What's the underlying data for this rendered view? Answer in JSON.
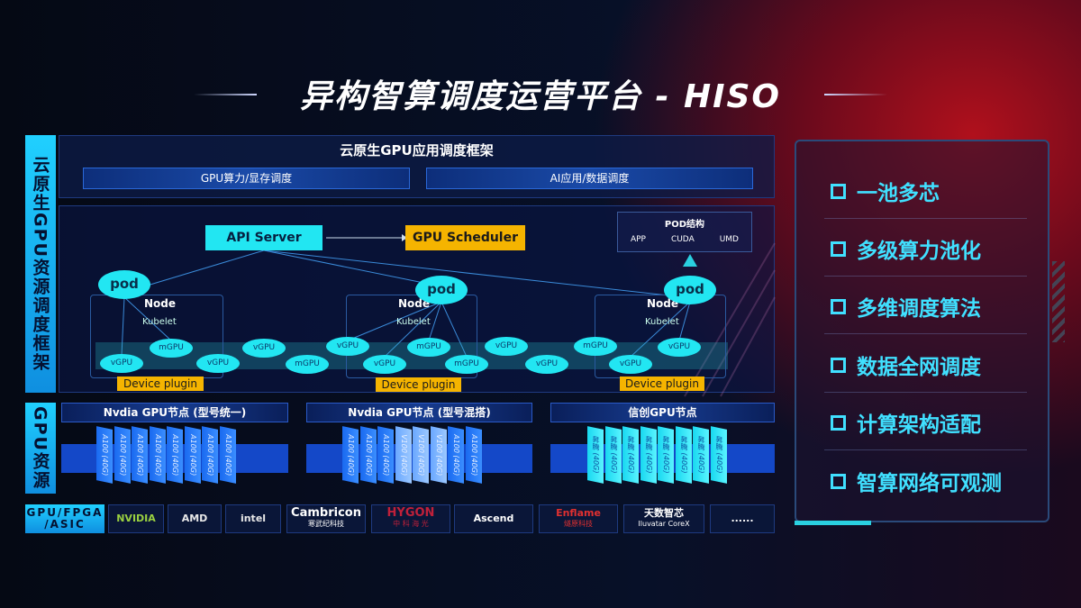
{
  "title": "异构智算调度运营平台 - HISO",
  "left_labels": {
    "framework": "云原生GPU资源调度框架",
    "resources": "GPU资源",
    "chips": "GPU/FPGA /ASIC"
  },
  "top_panel": {
    "title": "云原生GPU应用调度框架",
    "sub": [
      "GPU算力/显存调度",
      "AI应用/数据调度"
    ]
  },
  "api_server": "API Server",
  "gpu_scheduler": "GPU Scheduler",
  "pod_struct": {
    "title": "POD结构",
    "items": [
      "APP",
      "CUDA",
      "UMD"
    ]
  },
  "pod_label": "pod",
  "node_label": "Node",
  "kubelet_label": "Kubelet",
  "device_plugin": "Device plugin",
  "ellipses": [
    "vGPU",
    "mGPU",
    "vGPU",
    "vGPU",
    "mGPU",
    "vGPU",
    "vGPU",
    "mGPU",
    "mGPU",
    "vGPU",
    "vGPU",
    "mGPU",
    "vGPU",
    "vGPU"
  ],
  "gpu_nodes": [
    {
      "title": "Nvdia GPU节点 (型号统一)",
      "cards": [
        "A100 (40G)",
        "A100 (40G)",
        "A100 (40G)",
        "A100 (40G)",
        "A100 (40G)",
        "A100 (40G)",
        "A100 (40G)",
        "A100 (40G)"
      ]
    },
    {
      "title": "Nvdia GPU节点 (型号混搭)",
      "cards": [
        "A100 (40G)",
        "A100 (40G)",
        "A100 (40G)",
        "V100 (40G)",
        "V100 (40G)",
        "V100 (40G)",
        "A100 (40G)",
        "A100 (40G)"
      ]
    },
    {
      "title": "信创GPU节点",
      "cards": [
        "昇腾 (40G)",
        "昇腾 (40G)",
        "昇腾 (40G)",
        "昇腾 (40G)",
        "昇腾 (40G)",
        "昇腾 (40G)",
        "昇腾 (40G)",
        "昇腾 (40G)"
      ]
    }
  ],
  "vendors": [
    {
      "name": "NVIDIA",
      "sub": ""
    },
    {
      "name": "AMD",
      "sub": ""
    },
    {
      "name": "intel",
      "sub": ""
    },
    {
      "name": "Cambricon",
      "sub": "寒武纪科技"
    },
    {
      "name": "HYGON",
      "sub": "中 科 海 光"
    },
    {
      "name": "Ascend",
      "sub": ""
    },
    {
      "name": "Enflame",
      "sub": "燧原科技"
    },
    {
      "name": "天数智芯",
      "sub": "Iluvatar CoreX"
    },
    {
      "name": "......",
      "sub": ""
    }
  ],
  "features": [
    "一池多芯",
    "多级算力池化",
    "多维调度算法",
    "数据全网调度",
    "计算架构适配",
    "智算网络可观测"
  ],
  "colors": {
    "accent": "#22e6f2",
    "feature_text": "#40e0ff",
    "scheduler": "#f5b400",
    "red_glow": "#b0101c"
  }
}
